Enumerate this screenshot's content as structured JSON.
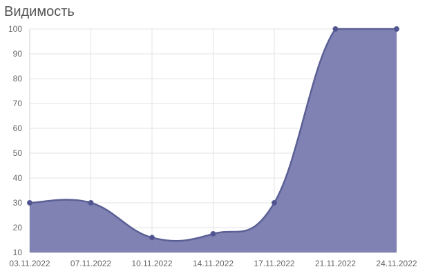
{
  "widget": {
    "title": "Видимость"
  },
  "chart_data": {
    "type": "area",
    "x": [
      "03.11.2022",
      "07.11.2022",
      "10.11.2022",
      "14.11.2022",
      "17.11.2022",
      "21.11.2022",
      "24.11.2022"
    ],
    "y": [
      30,
      30,
      16,
      17.5,
      30,
      100,
      100
    ],
    "y_ticks": [
      10,
      20,
      30,
      40,
      50,
      60,
      70,
      80,
      90,
      100
    ],
    "ylim": [
      10,
      100
    ],
    "xlabel": "",
    "ylabel": "",
    "grid": true,
    "legend": "none",
    "colors": {
      "fill": "#7f82b2",
      "line": "#5a5f95",
      "point": "#4f5390"
    }
  }
}
